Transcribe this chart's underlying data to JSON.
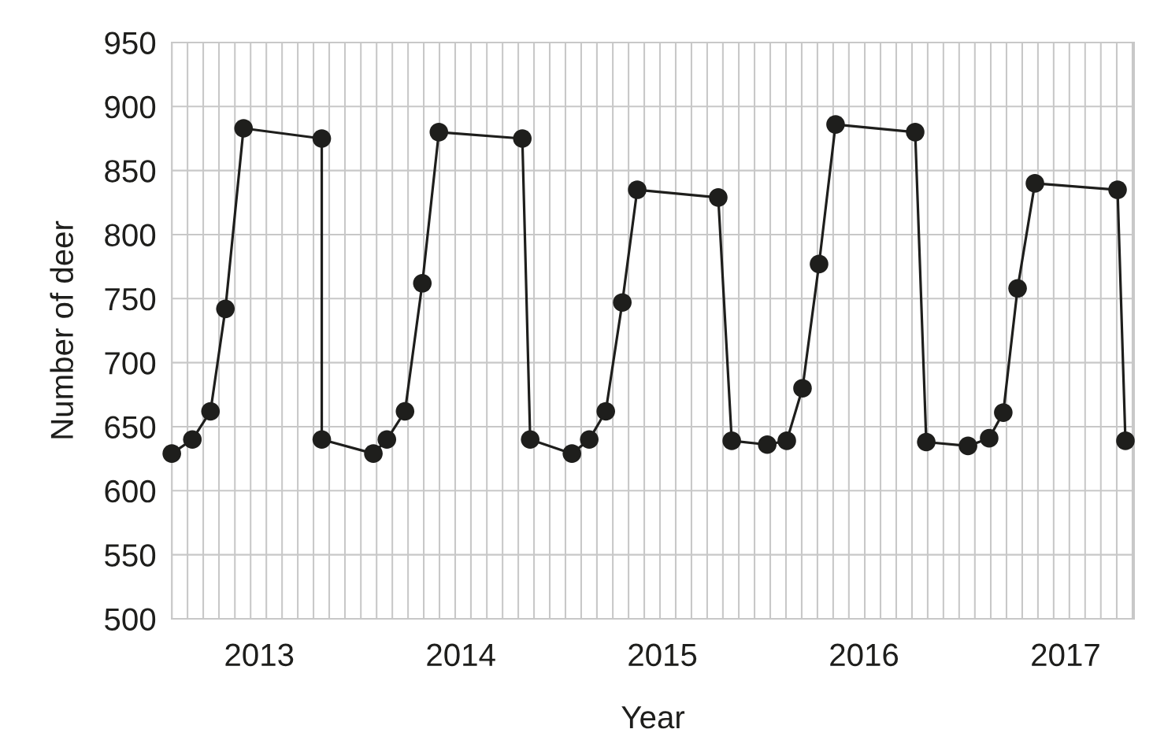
{
  "chart_data": {
    "type": "line",
    "xlabel": "Year",
    "ylabel": "Number of deer",
    "x": [
      2012.566,
      2012.668,
      2012.758,
      2012.832,
      2012.922,
      2013.31,
      2013.31,
      2013.566,
      2013.633,
      2013.723,
      2013.809,
      2013.891,
      2014.305,
      2014.344,
      2014.551,
      2014.637,
      2014.719,
      2014.801,
      2014.875,
      2015.277,
      2015.344,
      2015.52,
      2015.617,
      2015.695,
      2015.777,
      2015.859,
      2016.254,
      2016.309,
      2016.516,
      2016.621,
      2016.691,
      2016.762,
      2016.848,
      2017.258,
      2017.297
    ],
    "series": [
      {
        "color": "#1e1e1c",
        "values": [
          629,
          640,
          662,
          742,
          883,
          875,
          640,
          629,
          640,
          662,
          762,
          880,
          875,
          640,
          629,
          640,
          662,
          747,
          835,
          829,
          639,
          636,
          639,
          680,
          777,
          886,
          880,
          638,
          635,
          641,
          661,
          758,
          840,
          835,
          639
        ]
      }
    ],
    "xlim": [
      2012.566,
      2017.34
    ],
    "xticks": [
      2013,
      2014,
      2015,
      2016,
      2017,
      {
        "value": 2012.566,
        "label": null
      },
      {
        "value": 2012.644,
        "label": null
      },
      {
        "value": 2012.722,
        "label": null
      },
      {
        "value": 2012.8,
        "label": null
      },
      {
        "value": 2012.879,
        "label": null
      },
      {
        "value": 2012.957,
        "label": null
      },
      {
        "value": 2013.035,
        "label": null
      },
      {
        "value": 2013.113,
        "label": null
      },
      {
        "value": 2013.191,
        "label": null
      },
      {
        "value": 2013.269,
        "label": null
      },
      {
        "value": 2013.347,
        "label": null
      },
      {
        "value": 2013.425,
        "label": null
      },
      {
        "value": 2013.504,
        "label": null
      },
      {
        "value": 2013.582,
        "label": null
      },
      {
        "value": 2013.66,
        "label": null
      },
      {
        "value": 2013.738,
        "label": null
      },
      {
        "value": 2013.816,
        "label": null
      },
      {
        "value": 2013.894,
        "label": null
      },
      {
        "value": 2013.972,
        "label": null
      },
      {
        "value": 2014.05,
        "label": null
      },
      {
        "value": 2014.129,
        "label": null
      },
      {
        "value": 2014.207,
        "label": null
      },
      {
        "value": 2014.285,
        "label": null
      },
      {
        "value": 2014.363,
        "label": null
      },
      {
        "value": 2014.441,
        "label": null
      },
      {
        "value": 2014.519,
        "label": null
      },
      {
        "value": 2014.597,
        "label": null
      },
      {
        "value": 2014.675,
        "label": null
      },
      {
        "value": 2014.754,
        "label": null
      },
      {
        "value": 2014.832,
        "label": null
      },
      {
        "value": 2014.91,
        "label": null
      },
      {
        "value": 2014.988,
        "label": null
      },
      {
        "value": 2015.066,
        "label": null
      },
      {
        "value": 2015.144,
        "label": null
      },
      {
        "value": 2015.222,
        "label": null
      },
      {
        "value": 2015.3,
        "label": null
      },
      {
        "value": 2015.379,
        "label": null
      },
      {
        "value": 2015.457,
        "label": null
      },
      {
        "value": 2015.535,
        "label": null
      },
      {
        "value": 2015.613,
        "label": null
      },
      {
        "value": 2015.691,
        "label": null
      },
      {
        "value": 2015.769,
        "label": null
      },
      {
        "value": 2015.847,
        "label": null
      },
      {
        "value": 2015.925,
        "label": null
      },
      {
        "value": 2016.004,
        "label": null
      },
      {
        "value": 2016.082,
        "label": null
      },
      {
        "value": 2016.16,
        "label": null
      },
      {
        "value": 2016.238,
        "label": null
      },
      {
        "value": 2016.316,
        "label": null
      },
      {
        "value": 2016.394,
        "label": null
      },
      {
        "value": 2016.472,
        "label": null
      },
      {
        "value": 2016.55,
        "label": null
      },
      {
        "value": 2016.629,
        "label": null
      },
      {
        "value": 2016.707,
        "label": null
      },
      {
        "value": 2016.785,
        "label": null
      },
      {
        "value": 2016.863,
        "label": null
      },
      {
        "value": 2016.941,
        "label": null
      },
      {
        "value": 2017.019,
        "label": null
      },
      {
        "value": 2017.097,
        "label": null
      },
      {
        "value": 2017.175,
        "label": null
      },
      {
        "value": 2017.254,
        "label": null
      },
      {
        "value": 2017.332,
        "label": null
      }
    ],
    "ylim": [
      500,
      950
    ],
    "yticks": [
      500,
      550,
      600,
      650,
      700,
      750,
      800,
      850,
      900,
      950
    ],
    "grid": true,
    "marker": "circle",
    "line_style": "solid"
  }
}
